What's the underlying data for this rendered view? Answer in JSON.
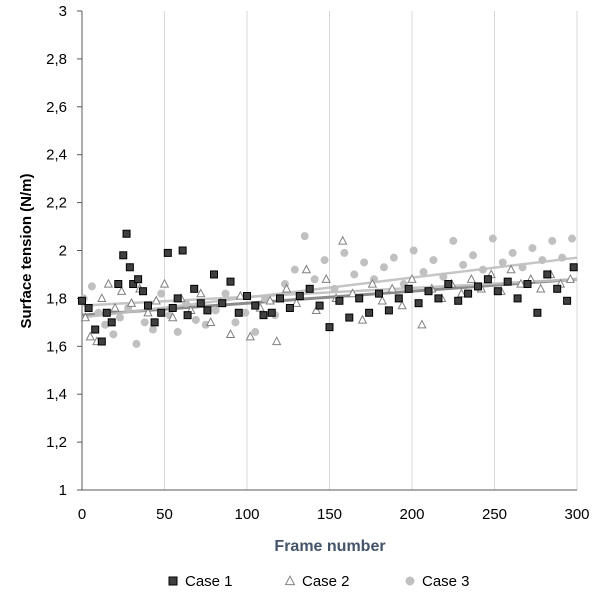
{
  "chart_data": {
    "type": "scatter",
    "title": "",
    "xlabel": "Frame number",
    "ylabel": "Surface tension (N/m)",
    "xlim": [
      0,
      300
    ],
    "ylim": [
      1,
      3
    ],
    "x_ticks": [
      "0",
      "50",
      "100",
      "150",
      "200",
      "250",
      "300"
    ],
    "y_ticks": [
      "1",
      "1,2",
      "1,4",
      "1,6",
      "1,8",
      "2",
      "2,2",
      "2,4",
      "2,6",
      "2,8",
      "3"
    ],
    "grid": "vertical",
    "legend_position": "bottom",
    "series": [
      {
        "name": "Case 1",
        "marker": "square",
        "color": "#404040",
        "edge": "#000000",
        "trend": [
          [
            0,
            1.73
          ],
          [
            300,
            1.88
          ]
        ],
        "x": [
          0,
          4,
          8,
          12,
          15,
          18,
          22,
          25,
          27,
          29,
          31,
          34,
          37,
          40,
          44,
          48,
          52,
          55,
          58,
          61,
          64,
          68,
          72,
          76,
          80,
          85,
          90,
          95,
          100,
          105,
          110,
          115,
          120,
          126,
          132,
          138,
          144,
          150,
          156,
          162,
          168,
          174,
          180,
          186,
          192,
          198,
          204,
          210,
          216,
          222,
          228,
          234,
          240,
          246,
          252,
          258,
          264,
          270,
          276,
          282,
          288,
          294,
          298
        ],
        "y": [
          1.79,
          1.76,
          1.67,
          1.62,
          1.74,
          1.7,
          1.86,
          1.98,
          2.07,
          1.93,
          1.86,
          1.88,
          1.83,
          1.77,
          1.7,
          1.74,
          1.99,
          1.76,
          1.8,
          2.0,
          1.73,
          1.84,
          1.78,
          1.75,
          1.9,
          1.78,
          1.87,
          1.74,
          1.81,
          1.77,
          1.73,
          1.74,
          1.8,
          1.76,
          1.81,
          1.84,
          1.77,
          1.68,
          1.79,
          1.72,
          1.8,
          1.74,
          1.82,
          1.75,
          1.8,
          1.84,
          1.78,
          1.83,
          1.8,
          1.86,
          1.79,
          1.82,
          1.85,
          1.88,
          1.83,
          1.87,
          1.8,
          1.86,
          1.74,
          1.9,
          1.84,
          1.79,
          1.93
        ]
      },
      {
        "name": "Case 2",
        "marker": "triangle",
        "color": "#ffffff",
        "edge": "#808080",
        "trend": [
          [
            0,
            1.77
          ],
          [
            300,
            1.88
          ]
        ],
        "x": [
          2,
          5,
          9,
          12,
          16,
          20,
          24,
          30,
          35,
          40,
          45,
          50,
          55,
          60,
          66,
          72,
          78,
          84,
          90,
          96,
          102,
          108,
          114,
          118,
          124,
          130,
          136,
          142,
          148,
          154,
          158,
          164,
          170,
          176,
          182,
          188,
          194,
          200,
          206,
          212,
          218,
          224,
          230,
          236,
          242,
          248,
          254,
          260,
          266,
          272,
          278,
          284,
          290,
          296
        ],
        "y": [
          1.72,
          1.64,
          1.62,
          1.8,
          1.86,
          1.76,
          1.83,
          1.78,
          1.84,
          1.74,
          1.79,
          1.86,
          1.72,
          1.8,
          1.75,
          1.82,
          1.7,
          1.78,
          1.65,
          1.81,
          1.64,
          1.76,
          1.79,
          1.62,
          1.84,
          1.78,
          1.92,
          1.75,
          1.88,
          1.8,
          2.04,
          1.82,
          1.71,
          1.86,
          1.79,
          1.84,
          1.77,
          1.88,
          1.69,
          1.84,
          1.8,
          1.86,
          1.82,
          1.88,
          1.84,
          1.9,
          1.83,
          1.92,
          1.86,
          1.88,
          1.84,
          1.9,
          1.86,
          1.88
        ]
      },
      {
        "name": "Case 3",
        "marker": "circle",
        "color": "#c0c0c0",
        "edge": "#c0c0c0",
        "trend": [
          [
            0,
            1.72
          ],
          [
            300,
            1.97
          ]
        ],
        "x": [
          1,
          6,
          10,
          14,
          19,
          23,
          28,
          33,
          38,
          43,
          48,
          53,
          58,
          63,
          69,
          75,
          81,
          87,
          93,
          99,
          105,
          111,
          117,
          123,
          129,
          135,
          141,
          147,
          153,
          159,
          165,
          171,
          177,
          183,
          189,
          195,
          201,
          207,
          213,
          219,
          225,
          231,
          237,
          243,
          249,
          255,
          261,
          267,
          273,
          279,
          285,
          291,
          297
        ],
        "y": [
          1.8,
          1.85,
          1.74,
          1.69,
          1.65,
          1.72,
          1.76,
          1.61,
          1.7,
          1.67,
          1.82,
          1.73,
          1.66,
          1.78,
          1.71,
          1.69,
          1.75,
          1.82,
          1.7,
          1.74,
          1.66,
          1.8,
          1.73,
          1.86,
          1.92,
          2.06,
          1.88,
          1.96,
          1.84,
          1.99,
          1.9,
          1.95,
          1.88,
          1.93,
          1.97,
          1.86,
          2.0,
          1.91,
          1.96,
          1.89,
          2.04,
          1.94,
          1.98,
          1.92,
          2.05,
          1.95,
          1.99,
          1.93,
          2.01,
          1.96,
          2.04,
          1.97,
          2.05
        ]
      }
    ]
  }
}
